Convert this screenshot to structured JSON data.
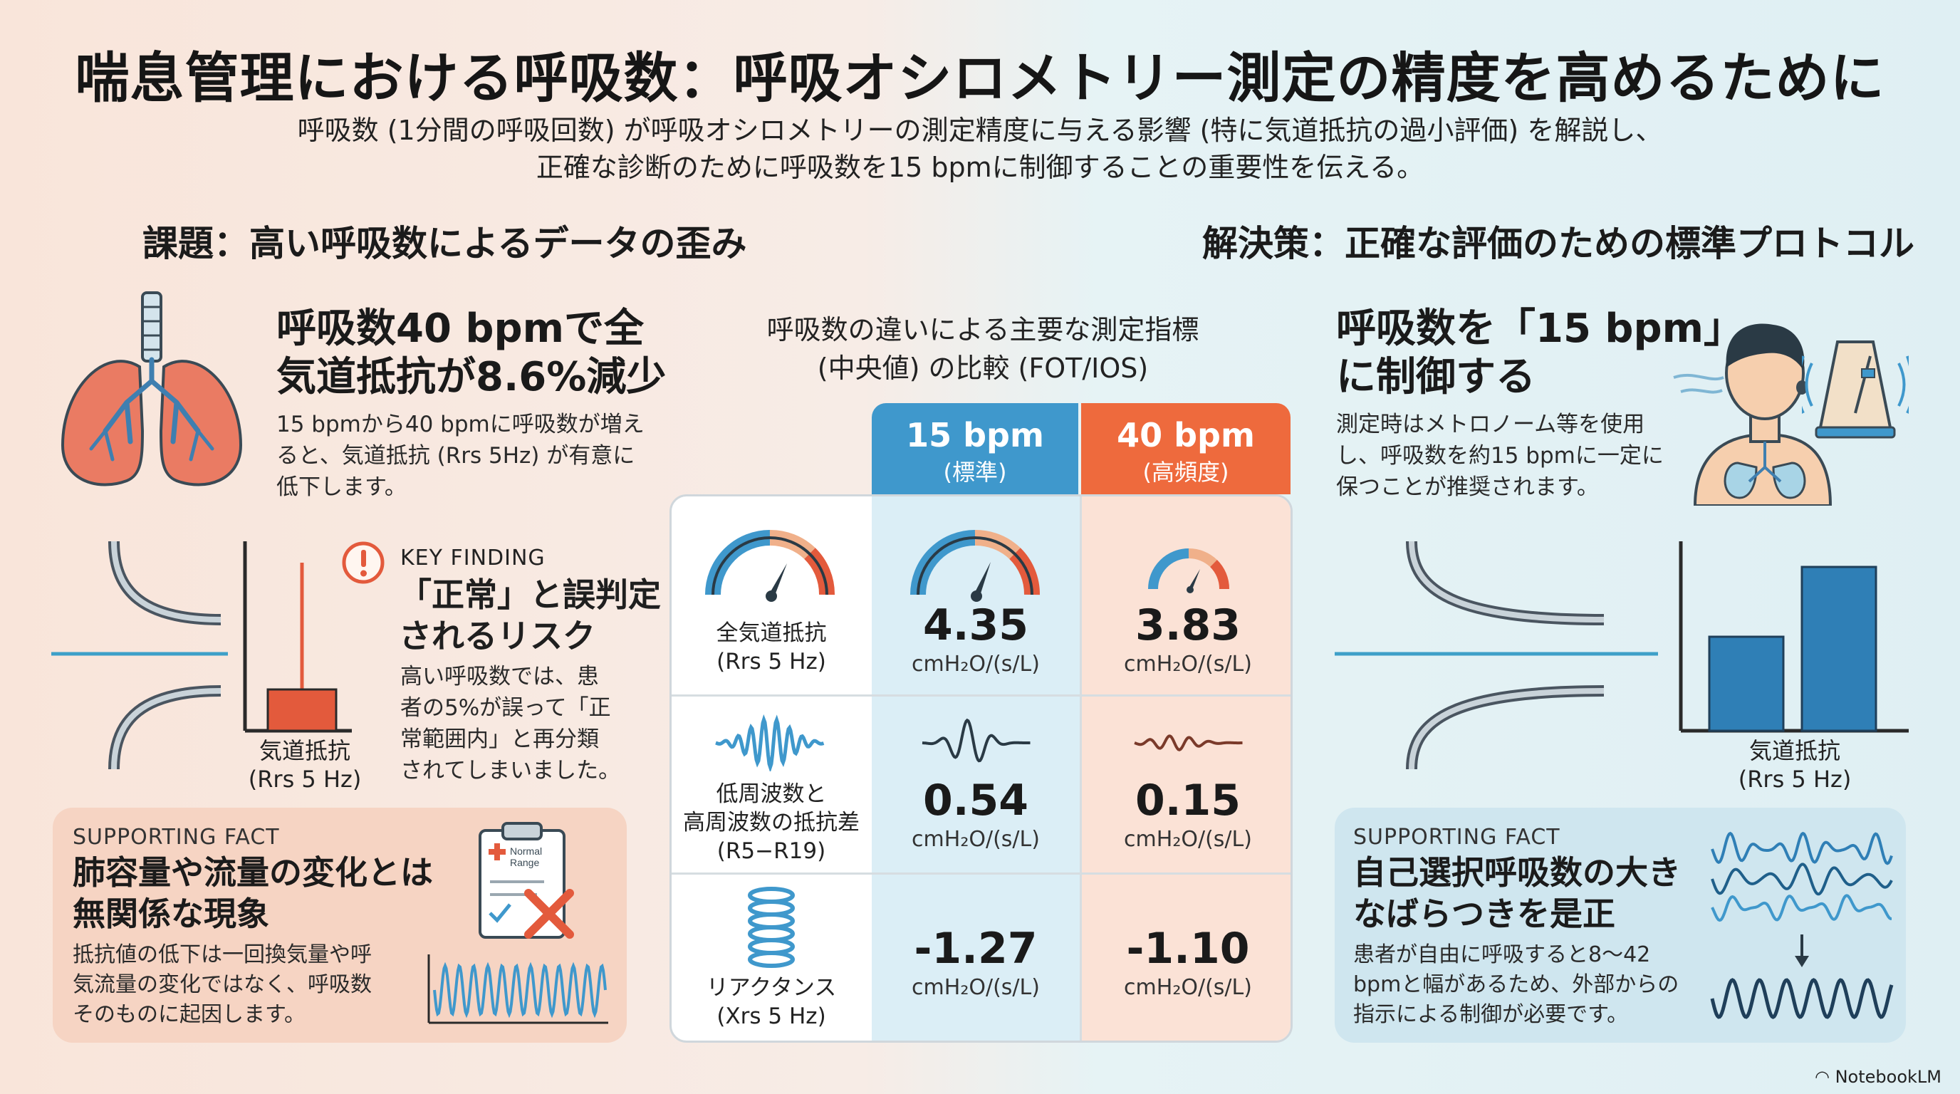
{
  "title": "喘息管理における呼吸数：呼吸オシロメトリー測定の精度を高めるために",
  "subtitle": {
    "line1": "呼吸数 (1分間の呼吸回数) が呼吸オシロメトリーの測定精度に与える影響 (特に気道抵抗の過小評価) を解説し、",
    "line2": "正確な診断のために呼吸数を15 bpmに制御することの重要性を伝える。"
  },
  "left": {
    "section_title": "課題：高い呼吸数によるデータの歪み",
    "headline": [
      "呼吸数40 bpmで全",
      "気道抵抗が8.6%減少"
    ],
    "body": [
      "15 bpmから40 bpmに呼吸数が増え",
      "ると、気道抵抗 (Rrs 5Hz) が有意に",
      "低下します。"
    ],
    "chart_caption": [
      "気道抵抗",
      "(Rrs 5 Hz)"
    ],
    "key_finding": {
      "label": "KEY FINDING",
      "headline": [
        "「正常」と誤判定",
        "されるリスク"
      ],
      "body": [
        "高い呼吸数では、患",
        "者の5%が誤って「正",
        "常範囲内」と再分類",
        "されてしまいました。"
      ]
    },
    "supporting": {
      "label": "SUPPORTING FACT",
      "headline": [
        "肺容量や流量の変化とは",
        "無関係な現象"
      ],
      "body": [
        "抵抗値の低下は一回換気量や呼",
        "気流量の変化ではなく、呼吸数",
        "そのものに起因します。"
      ],
      "clipboard_text": [
        "Normal",
        "Range"
      ]
    },
    "icons": {
      "lungs": "lungs-icon",
      "alert": "exclamation-icon",
      "clipboard": "clipboard-icon"
    }
  },
  "center": {
    "title": [
      "呼吸数の違いによる主要な測定指標",
      "(中央値) の比較 (FOT/IOS)"
    ],
    "columns": [
      {
        "label": "15 bpm",
        "sub": "(標準)",
        "color": "#3f98cc"
      },
      {
        "label": "40 bpm",
        "sub": "(高頻度)",
        "color": "#ee6a3d"
      }
    ],
    "rows": [
      {
        "label": [
          "全気道抵抗",
          "(Rrs 5 Hz)"
        ],
        "v15": "4.35",
        "v40": "3.83",
        "unit": "cmH₂O/(s/L)",
        "icon": "gauge-icon"
      },
      {
        "label": [
          "低周波数と",
          "高周波数の抵抗差",
          "(R5−R19)"
        ],
        "v15": "0.54",
        "v40": "0.15",
        "unit": "cmH₂O/(s/L)",
        "icon": "wave-icon"
      },
      {
        "label": [
          "リアクタンス",
          "(Xrs 5 Hz)"
        ],
        "v15": "-1.27",
        "v40": "-1.10",
        "unit": "cmH₂O/(s/L)",
        "icon": "spring-icon"
      }
    ]
  },
  "right": {
    "section_title": "解決策：正確な評価のための標準プロトコル",
    "headline": [
      "呼吸数を「15 bpm」",
      "に制御する"
    ],
    "body": [
      "測定時はメトロノーム等を使用",
      "し、呼吸数を約15 bpmに一定に",
      "保つことが推奨されます。"
    ],
    "chart_caption": [
      "気道抵抗",
      "(Rrs 5 Hz)"
    ],
    "supporting": {
      "label": "SUPPORTING FACT",
      "headline": [
        "自己選択呼吸数の大き",
        "なばらつきを是正"
      ],
      "body": [
        "患者が自由に呼吸すると8〜42",
        "bpmと幅があるため、外部からの",
        "指示による制御が必要です。"
      ]
    },
    "icons": {
      "person": "breathing-person-icon",
      "metronome": "metronome-icon"
    }
  },
  "brand": "NotebookLM"
}
